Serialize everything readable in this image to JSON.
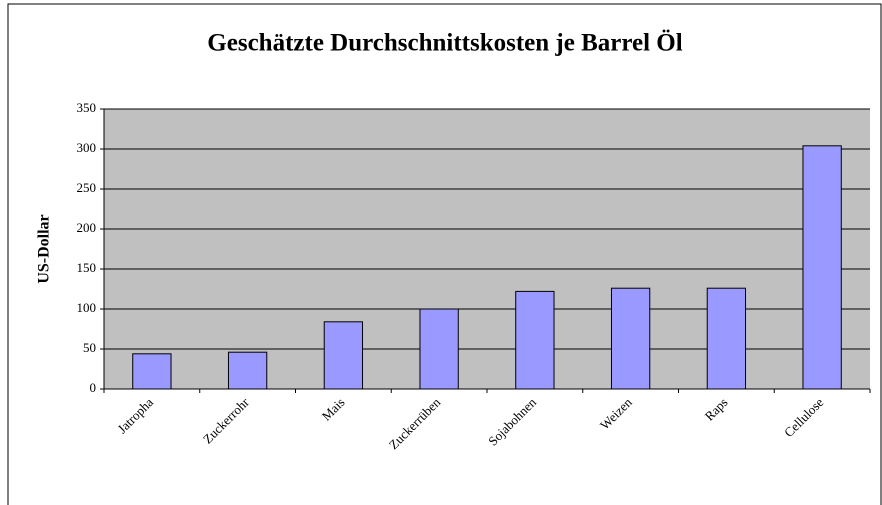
{
  "chart_data": {
    "type": "bar",
    "title": "Geschätzte Durchschnittskosten je Barrel Öl",
    "y_label": "US-Dollar",
    "categories": [
      "Jatropha",
      "Zuckerrohr",
      "Mais",
      "Zuckerrüben",
      "Sojabohnen",
      "Weizen",
      "Raps",
      "Cellulose"
    ],
    "values": [
      44,
      46,
      84,
      100,
      122,
      126,
      126,
      304
    ],
    "color": "#9999ff",
    "ylim": [
      0,
      350
    ],
    "yticks": [
      0,
      50,
      100,
      150,
      200,
      250,
      300,
      350
    ],
    "grid": true
  }
}
